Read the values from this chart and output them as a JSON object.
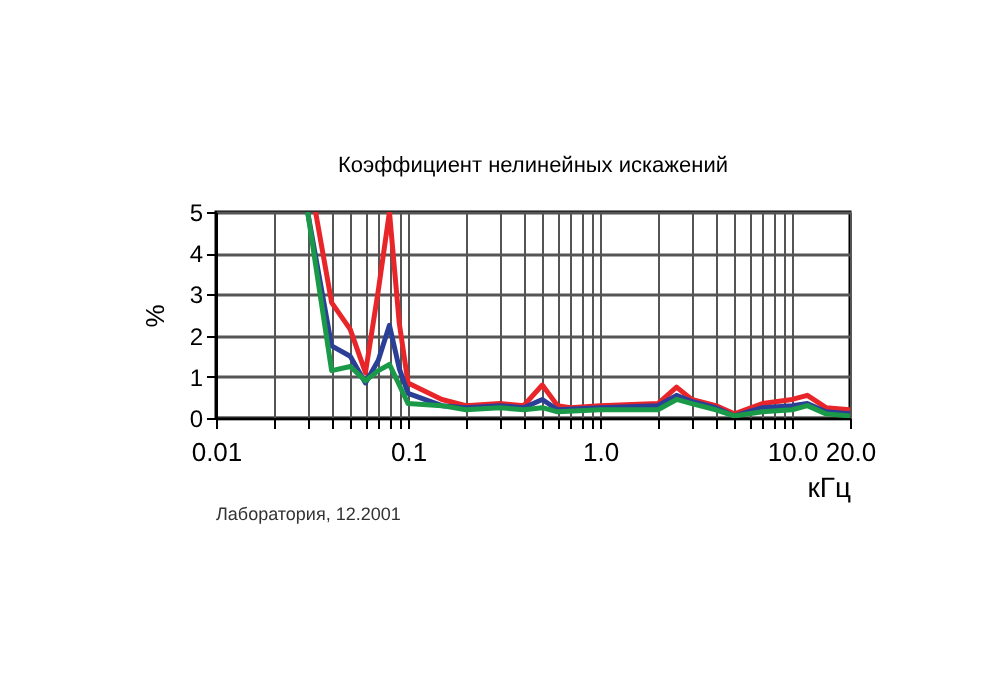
{
  "chart_data": {
    "type": "line",
    "title": "Коэффициент нелинейных искажений",
    "xlabel": "кГц",
    "ylabel": "%",
    "log": "x",
    "grid": true,
    "xlim": [
      0.01,
      20
    ],
    "ylim": [
      0,
      5
    ],
    "xticks": [
      0.01,
      {
        "value": 0.02,
        "label": null
      },
      {
        "value": 0.03,
        "label": null
      },
      {
        "value": 0.04,
        "label": null
      },
      {
        "value": 0.05,
        "label": null
      },
      {
        "value": 0.06,
        "label": null
      },
      {
        "value": 0.07,
        "label": null
      },
      {
        "value": 0.08,
        "label": null
      },
      {
        "value": 0.09,
        "label": null
      },
      0.1,
      {
        "value": 0.2,
        "label": null
      },
      {
        "value": 0.3,
        "label": null
      },
      {
        "value": 0.4,
        "label": null
      },
      {
        "value": 0.5,
        "label": null
      },
      {
        "value": 0.6,
        "label": null
      },
      {
        "value": 0.7,
        "label": null
      },
      {
        "value": 0.8,
        "label": null
      },
      {
        "value": 0.9,
        "label": null
      },
      {
        "value": 1,
        "label": "1.0"
      },
      {
        "value": 2,
        "label": null
      },
      {
        "value": 3,
        "label": null
      },
      {
        "value": 4,
        "label": null
      },
      {
        "value": 5,
        "label": null
      },
      {
        "value": 6,
        "label": null
      },
      {
        "value": 7,
        "label": null
      },
      {
        "value": 8,
        "label": null
      },
      {
        "value": 9,
        "label": null
      },
      {
        "value": 10,
        "label": "10.0"
      },
      {
        "value": 20,
        "label": "20.0"
      }
    ],
    "yticks": [
      0,
      1,
      2,
      3,
      4,
      5
    ],
    "annotations": [
      "Лаборатория, 12.2001"
    ],
    "series": [
      {
        "color": "#e8262a",
        "x": [
          0.033,
          0.04,
          0.05,
          0.06,
          0.07,
          0.08,
          0.09,
          0.1,
          0.15,
          0.2,
          0.3,
          0.4,
          0.5,
          0.6,
          0.7,
          1,
          2,
          2.5,
          3,
          4,
          5,
          7,
          10,
          12,
          15,
          20
        ],
        "values": [
          5,
          2.8,
          2.15,
          1.1,
          3.1,
          5,
          2.3,
          0.85,
          0.45,
          0.3,
          0.35,
          0.3,
          0.8,
          0.3,
          0.25,
          0.3,
          0.35,
          0.75,
          0.45,
          0.3,
          0.1,
          0.35,
          0.45,
          0.55,
          0.25,
          0.2
        ]
      },
      {
        "color": "#2b3f97",
        "x": [
          0.03,
          0.04,
          0.05,
          0.06,
          0.07,
          0.08,
          0.09,
          0.1,
          0.15,
          0.2,
          0.3,
          0.4,
          0.5,
          0.6,
          1,
          2,
          2.5,
          3,
          4,
          5,
          7,
          10,
          12,
          15,
          20
        ],
        "values": [
          5,
          1.75,
          1.5,
          0.85,
          1.4,
          2.25,
          1.2,
          0.6,
          0.3,
          0.25,
          0.3,
          0.25,
          0.45,
          0.2,
          0.25,
          0.3,
          0.55,
          0.4,
          0.25,
          0.05,
          0.25,
          0.3,
          0.35,
          0.15,
          0.1
        ]
      },
      {
        "color": "#1a9a48",
        "x": [
          0.03,
          0.04,
          0.05,
          0.06,
          0.07,
          0.08,
          0.09,
          0.1,
          0.15,
          0.2,
          0.3,
          0.4,
          0.5,
          0.6,
          1,
          2,
          2.5,
          3,
          4,
          5,
          7,
          10,
          12,
          15,
          20
        ],
        "values": [
          5,
          1.15,
          1.25,
          0.9,
          1.15,
          1.3,
          0.8,
          0.35,
          0.3,
          0.2,
          0.25,
          0.2,
          0.25,
          0.15,
          0.2,
          0.2,
          0.45,
          0.35,
          0.2,
          0.05,
          0.15,
          0.2,
          0.3,
          0.1,
          0.05
        ]
      }
    ]
  }
}
